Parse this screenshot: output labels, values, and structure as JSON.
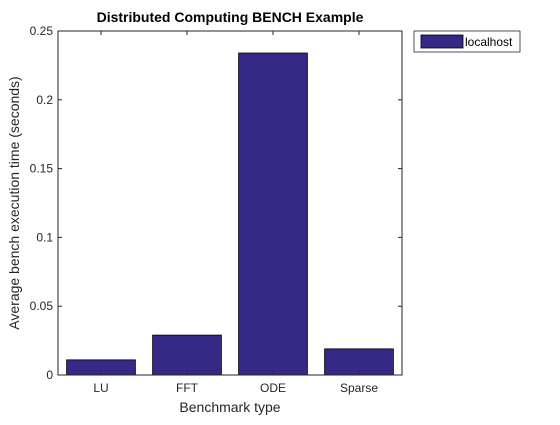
{
  "chart_data": {
    "type": "bar",
    "title": "Distributed Computing BENCH Example",
    "xlabel": "Benchmark type",
    "ylabel": "Average bench execution time (seconds)",
    "categories": [
      "LU",
      "FFT",
      "ODE",
      "Sparse"
    ],
    "series": [
      {
        "name": "localhost",
        "values": [
          0.011,
          0.029,
          0.234,
          0.019
        ],
        "color": "#342a86"
      }
    ],
    "ylim": [
      0,
      0.25
    ],
    "yticks": [
      0,
      0.05,
      0.1,
      0.15,
      0.2,
      0.25
    ],
    "ytick_labels": [
      "0",
      "0.05",
      "0.1",
      "0.15",
      "0.2",
      "0.25"
    ],
    "grid": false,
    "legend_position": "outside-top-right"
  }
}
